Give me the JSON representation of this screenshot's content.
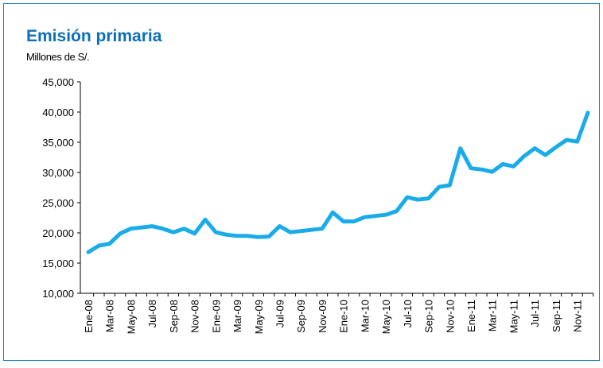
{
  "chart_data": {
    "type": "line",
    "title": "Emisión primaria",
    "subtitle": "Millones de S/.",
    "categories": [
      "Ene-08",
      null,
      "Mar-08",
      null,
      "May-08",
      null,
      "Jul-08",
      null,
      "Sep-08",
      null,
      "Nov-08",
      null,
      "Ene-09",
      null,
      "Mar-09",
      null,
      "May-09",
      null,
      "Jul-09",
      null,
      "Sep-09",
      null,
      "Nov-09",
      null,
      "Ene-10",
      null,
      "Mar-10",
      null,
      "May-10",
      null,
      "Jul-10",
      null,
      "Sep-10",
      null,
      "Nov-10",
      null,
      "Ene-11",
      null,
      "Mar-11",
      null,
      "May-11",
      null,
      "Jul-11",
      null,
      "Sep-11",
      null,
      "Nov-11",
      null
    ],
    "series": [
      {
        "name": "Emisión primaria",
        "color": "#1aace8",
        "values": [
          16800,
          17900,
          18200,
          19900,
          20700,
          20900,
          21100,
          20700,
          20100,
          20700,
          19900,
          22200,
          20100,
          19700,
          19500,
          19500,
          19300,
          19400,
          21100,
          20100,
          20300,
          20500,
          20700,
          23400,
          21900,
          21900,
          22600,
          22800,
          23000,
          23600,
          25900,
          25500,
          25700,
          27600,
          27900,
          34000,
          30700,
          30500,
          30100,
          31400,
          31000,
          32700,
          34000,
          32900,
          34200,
          35400,
          35100,
          39900
        ]
      }
    ],
    "ylim": [
      10000,
      45000
    ],
    "yticks": [
      {
        "value": 10000,
        "label": "10,000"
      },
      {
        "value": 15000,
        "label": "15,000"
      },
      {
        "value": 20000,
        "label": "20,000"
      },
      {
        "value": 25000,
        "label": "25,000"
      },
      {
        "value": 30000,
        "label": "30,000"
      },
      {
        "value": 35000,
        "label": "35,000"
      },
      {
        "value": 40000,
        "label": "40,000"
      },
      {
        "value": 45000,
        "label": "45,000"
      }
    ]
  }
}
